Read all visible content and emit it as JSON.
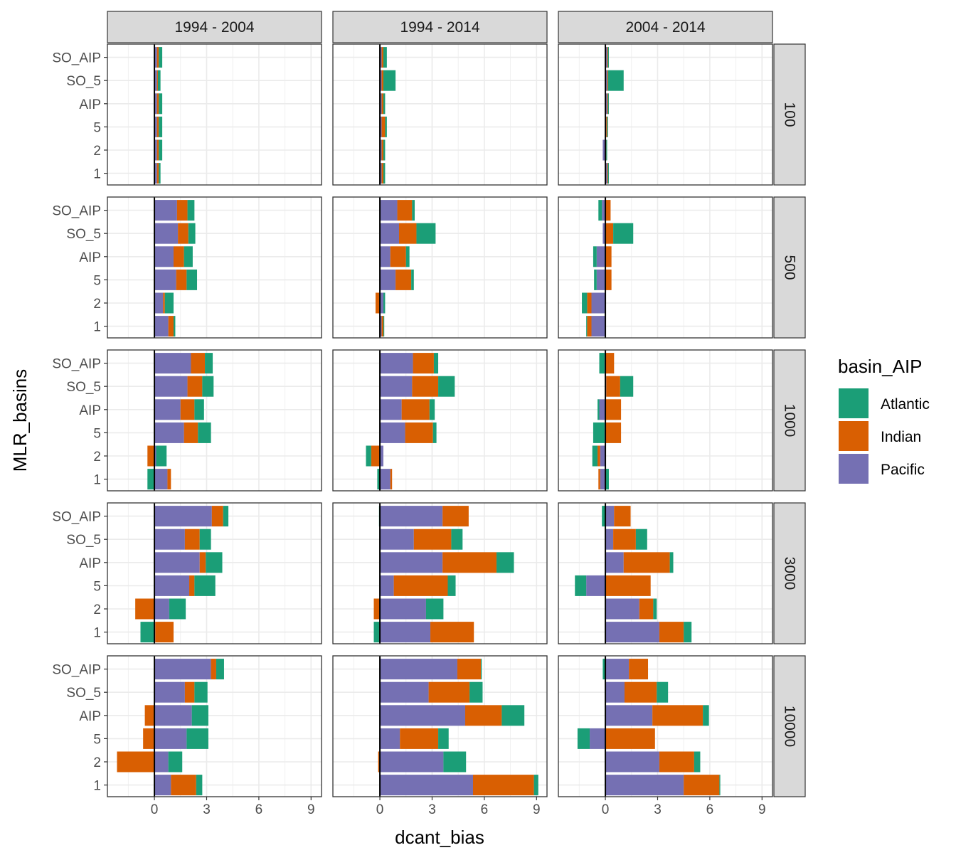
{
  "chart_data": {
    "type": "bar",
    "orientation": "horizontal",
    "stacked": true,
    "xlabel": "dcant_bias",
    "ylabel": "MLR_basins",
    "x_ticks": [
      0,
      3,
      6,
      9
    ],
    "xlim": [
      -2.7,
      9.6
    ],
    "categories": [
      "SO_AIP",
      "SO_5",
      "AIP",
      "5",
      "2",
      "1"
    ],
    "facet_cols": [
      "1994 - 2004",
      "1994 - 2014",
      "2004 - 2014"
    ],
    "facet_rows": [
      "100",
      "500",
      "1000",
      "3000",
      "10000"
    ],
    "legend": {
      "title": "basin_AIP",
      "placement": "right",
      "entries": [
        {
          "name": "Atlantic",
          "color": "#1B9E77"
        },
        {
          "name": "Indian",
          "color": "#D95F02"
        },
        {
          "name": "Pacific",
          "color": "#7570B3"
        }
      ]
    },
    "stack_order": [
      "Pacific",
      "Indian",
      "Atlantic"
    ],
    "grid": true,
    "zero_line": true,
    "panels": [
      [
        {
          "Pacific": [
            0.15,
            0.15,
            0.15,
            0.15,
            0.15,
            0.15
          ],
          "Indian": [
            0.1,
            0.05,
            0.1,
            0.1,
            0.1,
            0.1
          ],
          "Atlantic": [
            0.2,
            0.15,
            0.2,
            0.2,
            0.2,
            0.1
          ]
        },
        {
          "Pacific": [
            0.1,
            0.1,
            0.1,
            0.1,
            0.1,
            0.1
          ],
          "Indian": [
            0.1,
            0.1,
            0.1,
            0.2,
            0.1,
            0.1
          ],
          "Atlantic": [
            0.2,
            0.7,
            0.1,
            0.1,
            0.1,
            0.1
          ]
        },
        {
          "Pacific": [
            0.1,
            0.1,
            0.1,
            0.05,
            -0.15,
            0.1
          ],
          "Indian": [
            0.05,
            0.05,
            0.05,
            0.05,
            0.05,
            0.05
          ],
          "Atlantic": [
            0.05,
            0.9,
            0.05,
            0.05,
            0.05,
            0.05
          ]
        }
      ],
      [
        {
          "Pacific": [
            1.3,
            1.35,
            1.1,
            1.25,
            0.5,
            0.8
          ],
          "Indian": [
            0.6,
            0.6,
            0.6,
            0.6,
            0.1,
            0.3
          ],
          "Atlantic": [
            0.4,
            0.4,
            0.5,
            0.6,
            0.5,
            0.1
          ]
        },
        {
          "Pacific": [
            1.0,
            1.1,
            0.6,
            0.9,
            0.2,
            0.1
          ],
          "Indian": [
            0.85,
            1.0,
            0.9,
            0.9,
            -0.25,
            0.1
          ],
          "Atlantic": [
            0.15,
            1.1,
            0.2,
            0.15,
            0.1,
            0.05
          ]
        },
        {
          "Pacific": [
            -0.2,
            -0.15,
            -0.5,
            -0.5,
            -0.8,
            -0.8
          ],
          "Indian": [
            0.3,
            0.45,
            0.35,
            0.35,
            -0.25,
            -0.25
          ],
          "Atlantic": [
            -0.2,
            1.15,
            -0.2,
            -0.15,
            -0.3,
            -0.05
          ]
        }
      ],
      [
        {
          "Pacific": [
            2.1,
            1.9,
            1.5,
            1.7,
            0.1,
            0.75
          ],
          "Indian": [
            0.8,
            0.85,
            0.8,
            0.8,
            -0.4,
            0.2
          ],
          "Atlantic": [
            0.45,
            0.65,
            0.55,
            0.75,
            0.6,
            -0.4
          ]
        },
        {
          "Pacific": [
            1.9,
            1.85,
            1.25,
            1.45,
            0.2,
            0.6
          ],
          "Indian": [
            1.2,
            1.5,
            1.6,
            1.6,
            -0.5,
            0.1
          ],
          "Atlantic": [
            0.25,
            0.95,
            0.3,
            0.2,
            -0.3,
            -0.15
          ]
        },
        {
          "Pacific": [
            -0.05,
            0.05,
            -0.35,
            -0.05,
            -0.3,
            -0.3
          ],
          "Indian": [
            0.5,
            0.8,
            0.9,
            0.9,
            -0.15,
            -0.1
          ],
          "Atlantic": [
            -0.3,
            0.75,
            -0.1,
            -0.65,
            -0.3,
            0.2
          ]
        }
      ],
      [
        {
          "Pacific": [
            3.3,
            1.75,
            2.6,
            2.0,
            0.85,
            0.05
          ],
          "Indian": [
            0.65,
            0.85,
            0.35,
            0.3,
            -1.1,
            1.05
          ],
          "Atlantic": [
            0.3,
            0.65,
            0.95,
            1.2,
            0.95,
            -0.8
          ]
        },
        {
          "Pacific": [
            3.6,
            1.95,
            3.6,
            0.8,
            2.65,
            2.9
          ],
          "Indian": [
            1.5,
            2.15,
            3.1,
            3.1,
            -0.35,
            2.5
          ],
          "Atlantic": [
            -0.05,
            0.65,
            1.0,
            0.45,
            1.0,
            -0.35
          ]
        },
        {
          "Pacific": [
            0.5,
            0.45,
            1.05,
            -1.1,
            1.95,
            3.1
          ],
          "Indian": [
            0.95,
            1.3,
            2.65,
            2.6,
            0.8,
            1.4
          ],
          "Atlantic": [
            -0.2,
            0.65,
            0.2,
            -0.65,
            0.2,
            0.45
          ]
        }
      ],
      [
        {
          "Pacific": [
            3.25,
            1.75,
            2.15,
            1.85,
            0.8,
            0.95
          ],
          "Indian": [
            0.3,
            0.55,
            -0.55,
            -0.65,
            -2.15,
            1.45
          ],
          "Atlantic": [
            0.45,
            0.75,
            0.95,
            1.25,
            0.8,
            0.35
          ]
        },
        {
          "Pacific": [
            4.45,
            2.8,
            4.9,
            1.15,
            3.65,
            5.35
          ],
          "Indian": [
            1.35,
            2.35,
            2.1,
            2.2,
            -0.1,
            3.5
          ],
          "Atlantic": [
            0.05,
            0.75,
            1.3,
            0.6,
            1.3,
            0.25
          ]
        },
        {
          "Pacific": [
            1.35,
            1.1,
            2.7,
            -0.9,
            3.1,
            4.5
          ],
          "Indian": [
            1.1,
            1.85,
            2.9,
            2.85,
            2.0,
            2.05
          ],
          "Atlantic": [
            -0.15,
            0.65,
            0.35,
            -0.7,
            0.35,
            0.05
          ]
        }
      ]
    ]
  }
}
